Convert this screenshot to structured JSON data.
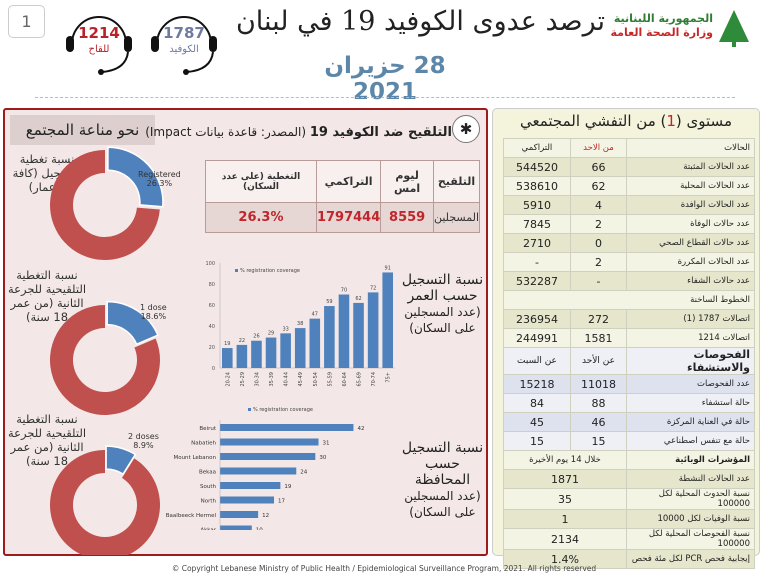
{
  "header": {
    "page_number": "1",
    "title": "ترصد عدوى الكوفيد 19 في لبنان",
    "date": "28 حزيران 2021",
    "hotlines": [
      {
        "number": "1214",
        "label": "للقاح",
        "color": "#b8232a"
      },
      {
        "number": "1787",
        "label": "الكوفيد",
        "color": "#6f7aa0"
      }
    ],
    "logo": {
      "line1": "الجمهورية اللبنانية",
      "line2": "وزارة الصحة العامة"
    }
  },
  "left": {
    "section_title": "نحو مناعة المجتمع",
    "donuts": [
      {
        "label": "نسبة تغطية التسجيل (كافة الاعمار)",
        "tag": "Registered",
        "value_text": "26.3%",
        "value": 26.3
      },
      {
        "label": "نسبة التغطية التلقيحية للجرعة الثانية (من عمر 18 سنة)",
        "tag": "1 dose",
        "value_text": "18.6%",
        "value": 18.6
      },
      {
        "label": "نسبة التغطية التلقيحية للجرعة الثانية (من عمر 18 سنة)",
        "tag": "2 doses",
        "value_text": "8.9%",
        "value": 8.9
      }
    ],
    "colors": {
      "registered": "#4f81bd",
      "remaining": "#c0504d"
    }
  },
  "vaccination": {
    "title_bold": "التلقيح ضد الكوفيد 19",
    "title_source": "(المصدر: قاعدة بيانات Impact)",
    "headers": [
      "التلقيح",
      "ليوم امس",
      "التراكمي",
      "التغطية (على عدد السكان)"
    ],
    "row": [
      "المسجلين",
      "8559",
      "1797444",
      "26.3%"
    ]
  },
  "chart_labels": {
    "age": {
      "line1": "نسبة التسجيل",
      "line2": "حسب العمر",
      "line3": "(عدد المسجلين على السكان)"
    },
    "region": {
      "line1": "نسبة التسجيل",
      "line2": "حسب المحافظة",
      "line3": "(عدد المسجلين على السكان)"
    }
  },
  "chart_data": [
    {
      "type": "bar",
      "legend": "% registration coverage",
      "legend_position": "top-left",
      "categories": [
        "20-24",
        "25-29",
        "30-34",
        "35-39",
        "40-44",
        "45-49",
        "50-54",
        "55-59",
        "60-64",
        "65-69",
        "70-74",
        "75+"
      ],
      "values": [
        19,
        22,
        26,
        29,
        33,
        38,
        47,
        59,
        70,
        62,
        72,
        91
      ],
      "ylim": [
        0,
        100
      ],
      "yticks": [
        0,
        20,
        40,
        60,
        80,
        100
      ],
      "color": "#4f81bd"
    },
    {
      "type": "bar",
      "orientation": "horizontal",
      "legend": "% registration coverage",
      "legend_position": "top",
      "categories": [
        "Beirut",
        "Nabatieh",
        "Mount Lebanon",
        "Bekaa",
        "South",
        "North",
        "Baalbeeck Hermel",
        "Akkar"
      ],
      "values": [
        42,
        31,
        30,
        24,
        19,
        17,
        12,
        10
      ],
      "color": "#4f81bd"
    }
  ],
  "right": {
    "title_pre": "مستوى (",
    "title_num": "1",
    "title_post": ") من التفشي المجتمعي",
    "cases_header": [
      "الحالات",
      "من الاحد",
      "التراكمي"
    ],
    "cases": [
      [
        "عدد الحالات المثبتة",
        "66",
        "544520"
      ],
      [
        "عدد الحالات المحلية",
        "62",
        "538610"
      ],
      [
        "عدد الحالات الوافدة",
        "4",
        "5910"
      ],
      [
        "عدد حالات الوفاة",
        "2",
        "7845"
      ],
      [
        "عدد حالات القطاع الصحي",
        "0",
        "2710"
      ],
      [
        "عدد الحالات المكررة",
        "2",
        "-"
      ],
      [
        "عدد حالات الشفاء",
        "-",
        "532287"
      ]
    ],
    "hotlines_header": "الخطوط الساخنة",
    "hotlines": [
      [
        "اتصالات 1787 (1)",
        "272",
        "236954"
      ],
      [
        "اتصالات 1214",
        "1581",
        "244991"
      ]
    ],
    "tests_header": [
      "الفحوصات والاستشفاء",
      "عن الأحد",
      "عن السبت"
    ],
    "tests": [
      [
        "عدد الفحوصات",
        "11018",
        "15218"
      ],
      [
        "حالة استشفاء",
        "88",
        "84"
      ],
      [
        "حالة في العناية المركزة",
        "46",
        "45"
      ],
      [
        "حالة مع تنفس اصطناعي",
        "15",
        "15"
      ]
    ],
    "indicators_header": [
      "المؤشرات الوبائية",
      "خلال 14 يوم الأخيرة"
    ],
    "indicators": [
      [
        "عدد الحالات النشطة",
        "1871"
      ],
      [
        "نسبة الحدوث المحلية لكل 100000",
        "35"
      ],
      [
        "نسبة الوفيات لكل 10000",
        "1"
      ],
      [
        "نسبة الفحوصات المحلية لكل 100000",
        "2134"
      ],
      [
        "إيجابية فحص PCR لكل مئة فحص",
        "1.4%"
      ]
    ]
  },
  "footer": "© Copyright Lebanese Ministry of Public Health / Epidemiological Surveillance Program, 2021. All rights reserved"
}
